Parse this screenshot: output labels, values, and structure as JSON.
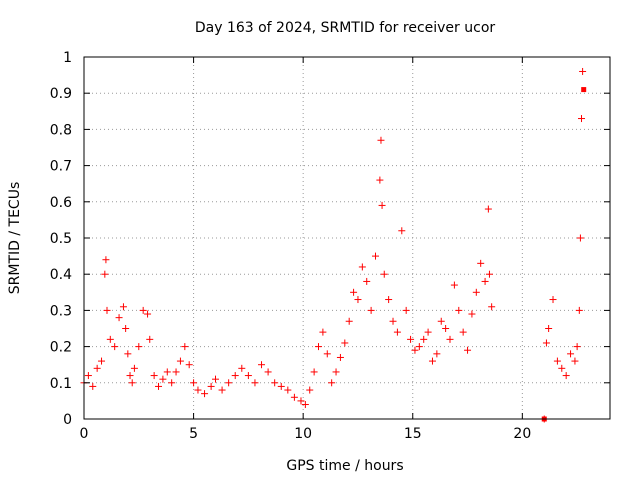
{
  "chart_data": {
    "type": "scatter",
    "title": "Day 163 of 2024, SRMTID for receiver ucor",
    "xlabel": "GPS time / hours",
    "ylabel": "SRMTID / TECUs",
    "xlim": [
      0,
      24
    ],
    "ylim": [
      0,
      1
    ],
    "grid": true,
    "marker": "+",
    "x_ticks": [
      0,
      5,
      10,
      15,
      20
    ],
    "x_tick_labels": [
      "0",
      "5",
      "10",
      "15",
      "20"
    ],
    "y_ticks": [
      0,
      0.1,
      0.2,
      0.3,
      0.4,
      0.5,
      0.6,
      0.7,
      0.8,
      0.9,
      1
    ],
    "y_tick_labels": [
      "0",
      "0.1",
      "0.2",
      "0.3",
      "0.4",
      "0.5",
      "0.6",
      "0.7",
      "0.8",
      "0.9",
      "1"
    ],
    "series": [
      {
        "name": "SRMTID",
        "color": "#ff0000",
        "x": [
          0.0,
          0.2,
          0.4,
          0.6,
          0.8,
          0.95,
          1.0,
          1.05,
          1.2,
          1.4,
          1.6,
          1.8,
          1.9,
          2.0,
          2.1,
          2.2,
          2.3,
          2.5,
          2.7,
          2.9,
          3.0,
          3.2,
          3.4,
          3.6,
          3.8,
          4.0,
          4.2,
          4.4,
          4.6,
          4.8,
          5.0,
          5.2,
          5.5,
          5.8,
          6.0,
          6.3,
          6.6,
          6.9,
          7.2,
          7.5,
          7.8,
          8.1,
          8.4,
          8.7,
          9.0,
          9.3,
          9.6,
          9.9,
          10.1,
          10.3,
          10.5,
          10.7,
          10.9,
          11.1,
          11.3,
          11.5,
          11.7,
          11.9,
          12.1,
          12.3,
          12.5,
          12.7,
          12.9,
          13.1,
          13.3,
          13.5,
          13.55,
          13.6,
          13.7,
          13.9,
          14.1,
          14.3,
          14.5,
          14.7,
          14.9,
          15.1,
          15.3,
          15.5,
          15.7,
          15.9,
          16.1,
          16.3,
          16.5,
          16.7,
          16.9,
          17.1,
          17.3,
          17.5,
          17.7,
          17.9,
          18.1,
          18.3,
          18.45,
          18.5,
          18.6,
          21.0,
          21.1,
          21.2,
          21.4,
          21.6,
          21.8,
          22.0,
          22.2,
          22.4,
          22.5,
          22.6,
          22.65,
          22.7,
          22.75
        ],
        "y": [
          0.1,
          0.12,
          0.09,
          0.14,
          0.16,
          0.4,
          0.44,
          0.3,
          0.22,
          0.2,
          0.28,
          0.31,
          0.25,
          0.18,
          0.12,
          0.1,
          0.14,
          0.2,
          0.3,
          0.29,
          0.22,
          0.12,
          0.09,
          0.11,
          0.13,
          0.1,
          0.13,
          0.16,
          0.2,
          0.15,
          0.1,
          0.08,
          0.07,
          0.09,
          0.11,
          0.08,
          0.1,
          0.12,
          0.14,
          0.12,
          0.1,
          0.15,
          0.13,
          0.1,
          0.09,
          0.08,
          0.06,
          0.05,
          0.04,
          0.08,
          0.13,
          0.2,
          0.24,
          0.18,
          0.1,
          0.13,
          0.17,
          0.21,
          0.27,
          0.35,
          0.33,
          0.42,
          0.38,
          0.3,
          0.45,
          0.66,
          0.77,
          0.59,
          0.4,
          0.33,
          0.27,
          0.24,
          0.52,
          0.3,
          0.22,
          0.19,
          0.2,
          0.22,
          0.24,
          0.16,
          0.18,
          0.27,
          0.25,
          0.22,
          0.37,
          0.3,
          0.24,
          0.19,
          0.29,
          0.35,
          0.43,
          0.38,
          0.58,
          0.4,
          0.31,
          0.0,
          0.21,
          0.25,
          0.33,
          0.16,
          0.14,
          0.12,
          0.18,
          0.16,
          0.2,
          0.3,
          0.5,
          0.83,
          0.96
        ]
      },
      {
        "name": "square markers",
        "color": "#ff0000",
        "marker": "square",
        "x": [
          21.0,
          22.8
        ],
        "y": [
          0.0,
          0.91
        ]
      }
    ]
  }
}
